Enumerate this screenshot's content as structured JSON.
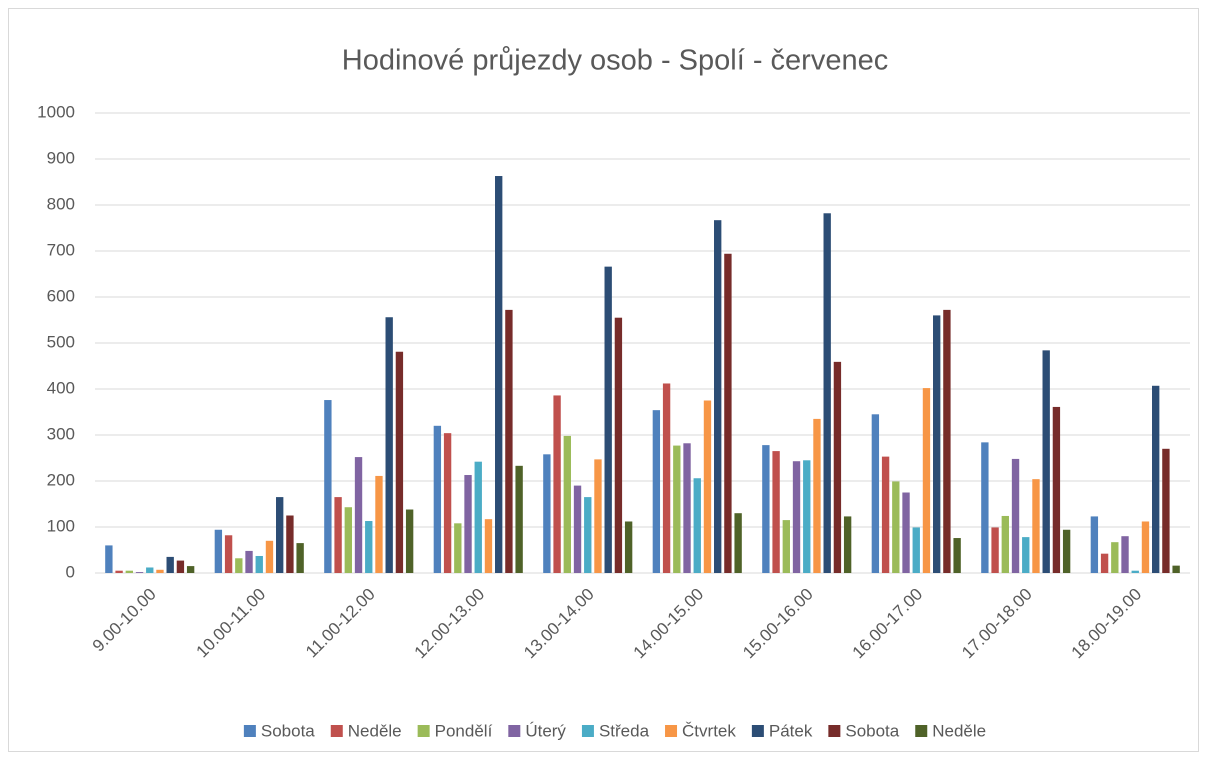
{
  "chart_data": {
    "type": "bar",
    "title": "Hodinové průjezdy osob - Spolí - červenec",
    "categories": [
      "9.00-10.00",
      "10.00-11.00",
      "11.00-12.00",
      "12.00-13.00",
      "13.00-14.00",
      "14.00-15.00",
      "15.00-16.00",
      "16.00-17.00",
      "17.00-18.00",
      "18.00-19.00"
    ],
    "series": [
      {
        "name": "Sobota",
        "color": "#4f81bd",
        "values": [
          60,
          94,
          376,
          320,
          258,
          354,
          278,
          345,
          284,
          123
        ]
      },
      {
        "name": "Neděle",
        "color": "#c0504d",
        "values": [
          5,
          82,
          165,
          304,
          386,
          412,
          265,
          253,
          99,
          42
        ]
      },
      {
        "name": "Pondělí",
        "color": "#9bbb59",
        "values": [
          5,
          32,
          143,
          108,
          298,
          277,
          115,
          199,
          124,
          67
        ]
      },
      {
        "name": "Úterý",
        "color": "#8064a2",
        "values": [
          2,
          48,
          252,
          213,
          190,
          282,
          243,
          175,
          248,
          80
        ]
      },
      {
        "name": "Středa",
        "color": "#4bacc6",
        "values": [
          12,
          37,
          113,
          242,
          165,
          206,
          245,
          99,
          78,
          5
        ]
      },
      {
        "name": "Čtvrtek",
        "color": "#f79646",
        "values": [
          7,
          70,
          211,
          117,
          247,
          375,
          335,
          402,
          204,
          112
        ]
      },
      {
        "name": "Pátek",
        "color": "#2c4d75",
        "values": [
          35,
          165,
          556,
          863,
          666,
          767,
          782,
          560,
          484,
          407
        ]
      },
      {
        "name": "Sobota",
        "color": "#772c2a",
        "values": [
          27,
          125,
          481,
          572,
          555,
          694,
          459,
          572,
          361,
          270
        ]
      },
      {
        "name": "Neděle",
        "color": "#4f6228",
        "values": [
          15,
          65,
          138,
          233,
          112,
          130,
          123,
          76,
          94,
          16
        ]
      }
    ],
    "ylim": [
      0,
      1000
    ],
    "yticks": [
      0,
      100,
      200,
      300,
      400,
      500,
      600,
      700,
      800,
      900,
      1000
    ],
    "grid": true,
    "legend": "bottom"
  }
}
